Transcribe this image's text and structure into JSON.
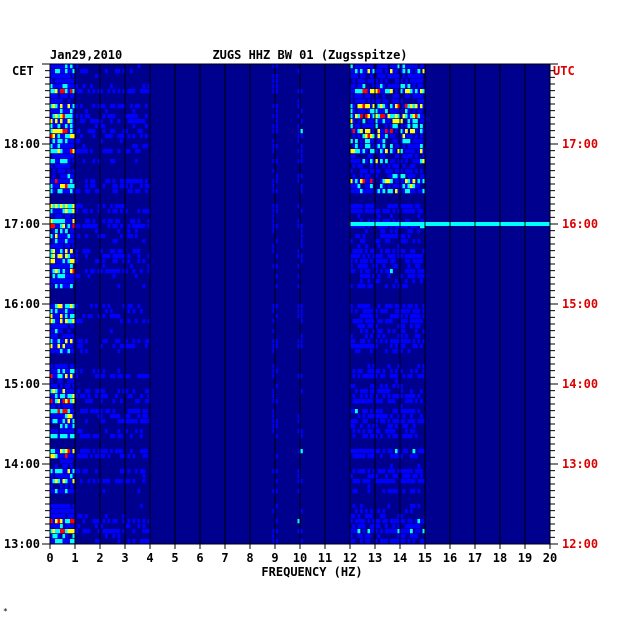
{
  "chart_data": {
    "type": "heatmap",
    "date": "Jan29,2010",
    "title": "ZUGS HHZ BW 01 (Zugsspitze)",
    "xlabel": "FREQUENCY (HZ)",
    "left_axis_label": "CET",
    "right_axis_label": "UTC",
    "xlim": [
      0,
      20
    ],
    "x_ticks": [
      "0",
      "1",
      "2",
      "3",
      "4",
      "5",
      "6",
      "7",
      "8",
      "9",
      "10",
      "11",
      "12",
      "13",
      "14",
      "15",
      "16",
      "17",
      "18",
      "19",
      "20"
    ],
    "time_range_cet": [
      "13:00",
      "19:00"
    ],
    "left_ticks": [
      "18:00",
      "17:00",
      "16:00",
      "15:00",
      "14:00",
      "13:00"
    ],
    "right_ticks": [
      "17:00",
      "16:00",
      "15:00",
      "14:00",
      "13:00",
      "12:00"
    ],
    "grid": "vertical lines at each integer frequency",
    "colormap": [
      "#00008f",
      "#0000ff",
      "#00ffff",
      "#ffff00",
      "#ff0000",
      "#800000"
    ],
    "dominant_bands_hz": [
      [
        0,
        1
      ],
      [
        12,
        15
      ]
    ],
    "spike_lines_hz": [
      9,
      10
    ]
  },
  "footer_mark": "*"
}
